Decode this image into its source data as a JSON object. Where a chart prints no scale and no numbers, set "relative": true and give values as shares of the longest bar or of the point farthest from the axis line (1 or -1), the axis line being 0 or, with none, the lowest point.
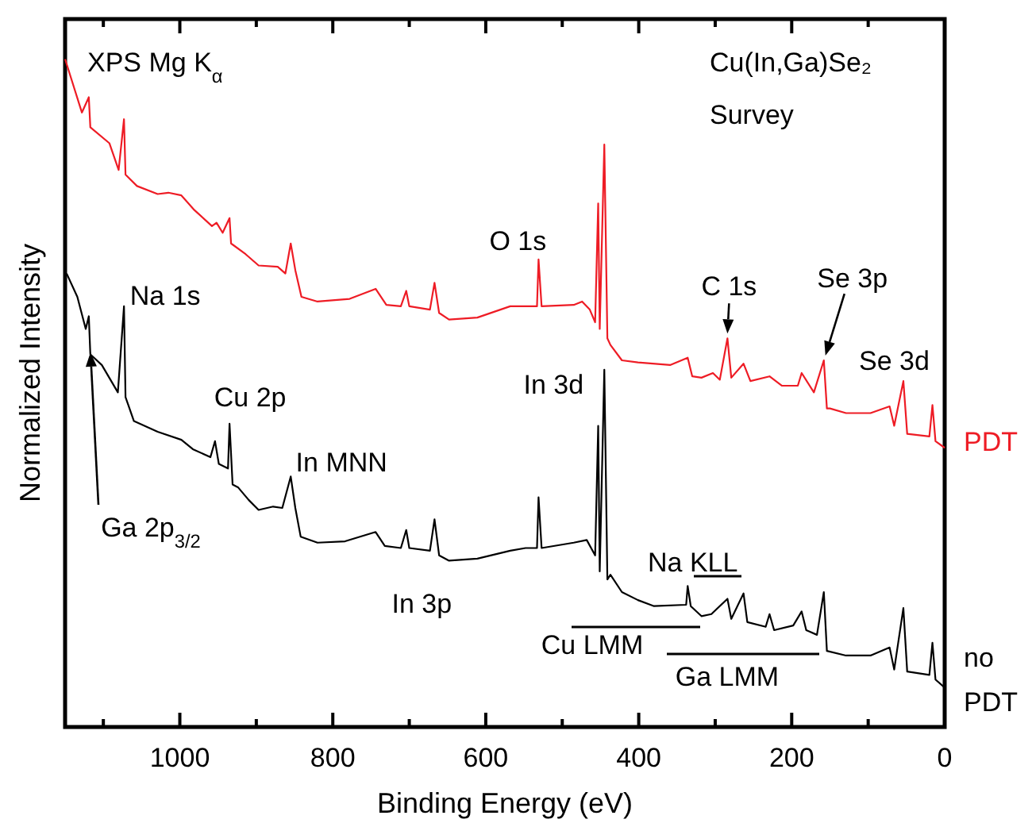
{
  "chart_data": {
    "type": "line",
    "relative": true,
    "xlabel": "Binding Energy (eV)",
    "ylabel": "Normalized Intensity",
    "xlim": [
      1150,
      0
    ],
    "xticks": [
      {
        "value": 1100,
        "label": null
      },
      1000,
      {
        "value": 900,
        "label": null
      },
      800,
      {
        "value": 700,
        "label": null
      },
      600,
      {
        "value": 500,
        "label": null
      },
      400,
      {
        "value": 300,
        "label": null
      },
      200,
      {
        "value": 100,
        "label": null
      },
      0
    ],
    "tick_labels": "x",
    "grid": false,
    "line_style": "solid",
    "series": [
      {
        "name": "PDT",
        "color": "#ee1c25",
        "x": [
          1150,
          1128,
          1119,
          1117,
          1092,
          1080,
          1073,
          1071,
          1056,
          1029,
          1015,
          998,
          981,
          958,
          952,
          944,
          935,
          933,
          914,
          897,
          872,
          862,
          855,
          849,
          841,
          820,
          778,
          744,
          730,
          711,
          704,
          700,
          673,
          667,
          661,
          648,
          611,
          568,
          548,
          533,
          531,
          527,
          485,
          474,
          464,
          457,
          453,
          451,
          445,
          441,
          437,
          422,
          401,
          359,
          336,
          330,
          318,
          303,
          294,
          284,
          279,
          263,
          254,
          229,
          213,
          192,
          187,
          171,
          158,
          154,
          150,
          129,
          97,
          72,
          66,
          54,
          49,
          20,
          16,
          12,
          0
        ],
        "values": [
          1,
          0.92,
          0.943,
          0.898,
          0.874,
          0.834,
          0.91,
          0.827,
          0.81,
          0.798,
          0.8,
          0.796,
          0.774,
          0.75,
          0.755,
          0.74,
          0.762,
          0.724,
          0.708,
          0.691,
          0.689,
          0.679,
          0.724,
          0.684,
          0.644,
          0.637,
          0.641,
          0.656,
          0.632,
          0.63,
          0.653,
          0.63,
          0.625,
          0.665,
          0.62,
          0.61,
          0.613,
          0.63,
          0.63,
          0.63,
          0.7,
          0.63,
          0.632,
          0.637,
          0.625,
          0.606,
          0.784,
          0.596,
          0.872,
          0.582,
          0.572,
          0.549,
          0.546,
          0.542,
          0.553,
          0.525,
          0.523,
          0.53,
          0.52,
          0.582,
          0.523,
          0.544,
          0.518,
          0.525,
          0.511,
          0.511,
          0.53,
          0.501,
          0.549,
          0.477,
          0.477,
          0.47,
          0.47,
          0.48,
          0.451,
          0.518,
          0.439,
          0.435,
          0.482,
          0.428,
          0.418
        ]
      },
      {
        "name": "no PDT",
        "color": "#000000",
        "x": [
          1148,
          1134,
          1123,
          1119,
          1117,
          1102,
          1081,
          1073,
          1071,
          1060,
          1029,
          998,
          983,
          960,
          954,
          949,
          937,
          935,
          931,
          924,
          910,
          897,
          878,
          866,
          855,
          849,
          842,
          820,
          784,
          744,
          732,
          711,
          704,
          700,
          673,
          667,
          661,
          648,
          611,
          568,
          548,
          533,
          531,
          527,
          485,
          468,
          457,
          453,
          451,
          445,
          441,
          437,
          422,
          401,
          380,
          338,
          336,
          332,
          318,
          305,
          284,
          279,
          263,
          258,
          234,
          229,
          223,
          198,
          187,
          181,
          167,
          158,
          154,
          129,
          97,
          72,
          66,
          54,
          49,
          20,
          16,
          12,
          0
        ],
        "values": [
          0.679,
          0.644,
          0.596,
          0.615,
          0.558,
          0.542,
          0.501,
          0.63,
          0.494,
          0.458,
          0.442,
          0.43,
          0.416,
          0.404,
          0.428,
          0.394,
          0.387,
          0.454,
          0.363,
          0.359,
          0.34,
          0.325,
          0.33,
          0.328,
          0.375,
          0.328,
          0.285,
          0.276,
          0.278,
          0.292,
          0.271,
          0.268,
          0.295,
          0.268,
          0.264,
          0.311,
          0.257,
          0.249,
          0.252,
          0.264,
          0.268,
          0.268,
          0.344,
          0.268,
          0.276,
          0.28,
          0.257,
          0.451,
          0.233,
          0.535,
          0.221,
          0.228,
          0.202,
          0.19,
          0.181,
          0.183,
          0.211,
          0.181,
          0.166,
          0.169,
          0.192,
          0.162,
          0.2,
          0.157,
          0.15,
          0.169,
          0.145,
          0.152,
          0.173,
          0.145,
          0.138,
          0.202,
          0.114,
          0.107,
          0.107,
          0.119,
          0.086,
          0.178,
          0.083,
          0.078,
          0.126,
          0.071,
          0.059
        ]
      }
    ],
    "annotations": [
      "XPS Mg K$_{α}$",
      "Cu(In,Ga)Se₂",
      "Survey",
      {
        "text": "O 1s",
        "x": 531,
        "y": 0.7
      },
      {
        "text": "C 1s",
        "x": 284,
        "y": 0.582
      },
      {
        "text": "Se 3p",
        "x": 158,
        "y": 0.549
      },
      {
        "text": "Se 3d",
        "x": 54,
        "y": 0.518
      },
      {
        "text": "Na 1s",
        "x": 1073,
        "y": 0.63
      },
      {
        "text": "Cu 2p",
        "x": 935,
        "y": 0.454
      },
      {
        "text": "In MNN",
        "x": 855,
        "y": 0.375
      },
      {
        "text": "In 3p",
        "x": 667,
        "y": 0.311
      },
      {
        "text": "In 3d",
        "x": 445,
        "y": 0.535
      },
      "Ga 2p$_{3/2}$",
      "Na KLL",
      "Cu LMM",
      "Ga LMM"
    ]
  }
}
